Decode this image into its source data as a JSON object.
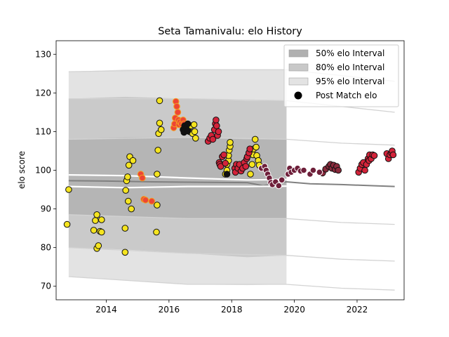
{
  "chart_data": {
    "type": "scatter",
    "title": "Seta Tamanivalu: elo History",
    "xlabel": "",
    "ylabel": "elo score",
    "xlim": [
      2012.4,
      2023.5
    ],
    "ylim": [
      66.5,
      133.5
    ],
    "x_ticks": [
      2014,
      2016,
      2018,
      2020,
      2022
    ],
    "y_ticks": [
      70,
      80,
      90,
      100,
      110,
      120,
      130
    ],
    "legend_position": "top-right",
    "legend": [
      {
        "label": "50% elo Interval",
        "kind": "band",
        "color": "#b0b0b0"
      },
      {
        "label": "80% elo Interval",
        "kind": "band",
        "color": "#c8c8c8"
      },
      {
        "label": "95% elo Interval",
        "kind": "band",
        "color": "#e3e3e3"
      },
      {
        "label": "Post Match elo",
        "kind": "marker",
        "color": "#000000"
      }
    ],
    "interval_band_end_year": 2019.75,
    "bands": {
      "95": {
        "lower": [
          [
            2012.8,
            72.5
          ],
          [
            2014.6,
            71.5
          ],
          [
            2016.6,
            70.5
          ],
          [
            2018.5,
            70.3
          ],
          [
            2019.75,
            70.5
          ]
        ],
        "upper": [
          [
            2012.8,
            125.5
          ],
          [
            2014.6,
            126.0
          ],
          [
            2016.6,
            126.0
          ],
          [
            2018.5,
            126.0
          ],
          [
            2019.75,
            126.0
          ]
        ]
      },
      "80": {
        "lower": [
          [
            2012.8,
            80.0
          ],
          [
            2014.6,
            79.5
          ],
          [
            2016.6,
            78.5
          ],
          [
            2018.5,
            77.5
          ],
          [
            2019.75,
            78.0
          ]
        ],
        "upper": [
          [
            2012.8,
            118.5
          ],
          [
            2014.6,
            119.0
          ],
          [
            2016.6,
            118.5
          ],
          [
            2018.5,
            118.0
          ],
          [
            2019.75,
            118.0
          ]
        ]
      },
      "50": {
        "lower": [
          [
            2012.8,
            88.5
          ],
          [
            2014.6,
            88.0
          ],
          [
            2016.6,
            87.5
          ],
          [
            2018.5,
            87.5
          ],
          [
            2019.75,
            87.5
          ]
        ],
        "upper": [
          [
            2012.8,
            108.0
          ],
          [
            2014.6,
            108.5
          ],
          [
            2016.6,
            108.5
          ],
          [
            2018.5,
            108.0
          ],
          [
            2019.75,
            108.0
          ]
        ]
      }
    },
    "reference_lines": [
      {
        "name": "white-upper",
        "color": "#ffffff",
        "width": 2.2,
        "points": [
          [
            2012.8,
            98.8
          ],
          [
            2014.6,
            98.6
          ],
          [
            2016.6,
            98.0
          ],
          [
            2018.5,
            97.5
          ],
          [
            2019.75,
            97.6
          ]
        ]
      },
      {
        "name": "median",
        "color": "#808080",
        "width": 2.0,
        "points": [
          [
            2012.8,
            97.3
          ],
          [
            2014.0,
            97.2
          ],
          [
            2015.5,
            97.0
          ],
          [
            2017.0,
            96.9
          ],
          [
            2018.5,
            96.8
          ],
          [
            2019.0,
            96.0
          ],
          [
            2019.75,
            97.0
          ],
          [
            2020.5,
            96.5
          ],
          [
            2021.5,
            96.3
          ],
          [
            2022.5,
            96.0
          ],
          [
            2023.2,
            95.8
          ]
        ]
      },
      {
        "name": "white-lower",
        "color": "#ffffff",
        "width": 2.2,
        "points": [
          [
            2012.8,
            95.8
          ],
          [
            2014.6,
            95.5
          ],
          [
            2016.6,
            95.8
          ],
          [
            2018.5,
            95.8
          ],
          [
            2019.75,
            95.9
          ]
        ]
      }
    ],
    "faint_lines": [
      {
        "points": [
          [
            2012.8,
            125.5
          ],
          [
            2016.6,
            126.0
          ],
          [
            2019.75,
            126.0
          ],
          [
            2021.5,
            124.5
          ],
          [
            2023.2,
            123.0
          ]
        ]
      },
      {
        "points": [
          [
            2012.8,
            118.5
          ],
          [
            2016.6,
            118.5
          ],
          [
            2019.75,
            118.0
          ],
          [
            2021.5,
            116.5
          ],
          [
            2023.2,
            115.0
          ]
        ]
      },
      {
        "points": [
          [
            2012.8,
            108.0
          ],
          [
            2016.6,
            108.5
          ],
          [
            2019.75,
            108.0
          ],
          [
            2021.5,
            107.0
          ],
          [
            2023.2,
            106.5
          ]
        ]
      },
      {
        "points": [
          [
            2012.8,
            88.5
          ],
          [
            2016.6,
            87.5
          ],
          [
            2019.75,
            87.5
          ],
          [
            2021.5,
            86.5
          ],
          [
            2023.2,
            86.0
          ]
        ]
      },
      {
        "points": [
          [
            2012.8,
            80.0
          ],
          [
            2016.6,
            78.5
          ],
          [
            2019.75,
            78.0
          ],
          [
            2021.5,
            77.0
          ],
          [
            2023.2,
            76.5
          ]
        ]
      },
      {
        "points": [
          [
            2012.8,
            72.5
          ],
          [
            2016.6,
            70.5
          ],
          [
            2019.75,
            70.5
          ],
          [
            2021.5,
            69.5
          ],
          [
            2023.2,
            69.0
          ]
        ]
      }
    ],
    "series": [
      {
        "fill": "#f5e41f",
        "edge": "#111111",
        "points": [
          [
            2012.75,
            86.0
          ],
          [
            2012.8,
            95.0
          ],
          [
            2013.6,
            84.5
          ],
          [
            2013.65,
            87.0
          ],
          [
            2013.7,
            88.5
          ],
          [
            2013.7,
            79.8
          ],
          [
            2013.75,
            80.5
          ],
          [
            2013.8,
            84.2
          ],
          [
            2013.85,
            87.2
          ],
          [
            2013.85,
            84.0
          ],
          [
            2014.6,
            78.8
          ],
          [
            2014.6,
            85.0
          ],
          [
            2014.62,
            94.8
          ],
          [
            2014.65,
            97.3
          ],
          [
            2014.68,
            98.3
          ],
          [
            2014.7,
            92.0
          ],
          [
            2014.72,
            101.3
          ],
          [
            2014.75,
            103.5
          ],
          [
            2014.8,
            90.0
          ],
          [
            2014.85,
            102.5
          ],
          [
            2015.6,
            84.0
          ],
          [
            2015.62,
            91.0
          ],
          [
            2015.62,
            99.0
          ],
          [
            2015.65,
            105.2
          ],
          [
            2015.67,
            109.5
          ],
          [
            2015.7,
            112.2
          ],
          [
            2015.7,
            118.0
          ],
          [
            2015.75,
            110.5
          ],
          [
            2016.55,
            110.5
          ],
          [
            2016.6,
            111.8
          ],
          [
            2016.65,
            110.0
          ],
          [
            2016.7,
            111.5
          ],
          [
            2016.75,
            109.5
          ],
          [
            2016.8,
            111.8
          ],
          [
            2016.82,
            110.0
          ],
          [
            2016.85,
            108.3
          ],
          [
            2017.8,
            99.0
          ],
          [
            2017.85,
            100.0
          ],
          [
            2017.85,
            101.5
          ],
          [
            2017.9,
            102.5
          ],
          [
            2017.9,
            103.8
          ],
          [
            2017.92,
            105.2
          ],
          [
            2017.95,
            106.2
          ],
          [
            2017.95,
            107.2
          ],
          [
            2018.6,
            99.0
          ],
          [
            2018.65,
            101.5
          ],
          [
            2018.68,
            104.0
          ],
          [
            2018.7,
            105.5
          ],
          [
            2018.75,
            108.0
          ],
          [
            2018.78,
            106.0
          ],
          [
            2018.8,
            103.8
          ],
          [
            2018.85,
            102.5
          ],
          [
            2018.88,
            101.3
          ]
        ]
      },
      {
        "fill": "#ed4535",
        "edge": "#f3a020",
        "points": [
          [
            2015.1,
            99.0
          ],
          [
            2015.15,
            98.0
          ],
          [
            2015.2,
            92.5
          ],
          [
            2015.25,
            92.3
          ],
          [
            2015.45,
            92.0
          ],
          [
            2016.15,
            111.0
          ],
          [
            2016.18,
            112.0
          ],
          [
            2016.2,
            113.5
          ],
          [
            2016.22,
            117.8
          ],
          [
            2016.25,
            116.5
          ],
          [
            2016.28,
            115.0
          ],
          [
            2016.3,
            113.0
          ],
          [
            2016.32,
            111.8
          ],
          [
            2016.35,
            112.5
          ],
          [
            2016.4,
            112.0
          ],
          [
            2016.45,
            113.0
          ],
          [
            2016.48,
            112.0
          ]
        ]
      },
      {
        "fill": "#111111",
        "edge": "#111111",
        "points": [
          [
            2016.45,
            110.5
          ],
          [
            2016.5,
            111.5
          ],
          [
            2016.55,
            110.8
          ],
          [
            2016.6,
            112.0
          ],
          [
            2016.48,
            109.8
          ],
          [
            2016.6,
            110.2
          ],
          [
            2017.85,
            99.0
          ]
        ]
      },
      {
        "fill": "#d4233a",
        "edge": "#111111",
        "points": [
          [
            2017.25,
            107.5
          ],
          [
            2017.3,
            108.3
          ],
          [
            2017.35,
            109.0
          ],
          [
            2017.4,
            108.0
          ],
          [
            2017.45,
            110.5
          ],
          [
            2017.48,
            112.0
          ],
          [
            2017.5,
            113.0
          ],
          [
            2017.52,
            111.5
          ],
          [
            2017.55,
            109.0
          ],
          [
            2017.58,
            110.0
          ],
          [
            2017.6,
            102.0
          ],
          [
            2017.62,
            101.5
          ],
          [
            2017.65,
            101.0
          ],
          [
            2017.7,
            103.5
          ],
          [
            2017.75,
            104.0
          ],
          [
            2017.8,
            101.8
          ],
          [
            2018.1,
            100.5
          ],
          [
            2018.12,
            99.5
          ],
          [
            2018.15,
            101.5
          ],
          [
            2018.2,
            100.5
          ],
          [
            2018.25,
            101.5
          ],
          [
            2018.3,
            99.8
          ],
          [
            2018.35,
            100.5
          ],
          [
            2018.4,
            102.0
          ],
          [
            2018.45,
            101.0
          ],
          [
            2018.48,
            103.0
          ],
          [
            2018.5,
            103.5
          ],
          [
            2018.55,
            104.5
          ],
          [
            2018.58,
            105.5
          ],
          [
            2022.05,
            99.5
          ],
          [
            2022.1,
            100.5
          ],
          [
            2022.15,
            101.5
          ],
          [
            2022.2,
            102.0
          ],
          [
            2022.25,
            100.0
          ],
          [
            2022.3,
            101.5
          ],
          [
            2022.35,
            103.0
          ],
          [
            2022.38,
            102.5
          ],
          [
            2022.4,
            104.0
          ],
          [
            2022.45,
            103.0
          ],
          [
            2022.5,
            104.0
          ],
          [
            2022.55,
            103.8
          ],
          [
            2022.95,
            104.3
          ],
          [
            2023.0,
            103.0
          ],
          [
            2023.05,
            104.0
          ],
          [
            2023.1,
            104.5
          ],
          [
            2023.12,
            105.0
          ],
          [
            2023.15,
            104.0
          ]
        ]
      },
      {
        "fill": "#8a2a3c",
        "edge": "#111111",
        "points": [
          [
            2020.9,
            99.3
          ],
          [
            2021.0,
            100.3
          ],
          [
            2021.1,
            101.0
          ],
          [
            2021.15,
            101.5
          ],
          [
            2021.2,
            100.5
          ],
          [
            2021.25,
            101.3
          ],
          [
            2021.3,
            100.2
          ],
          [
            2021.35,
            101.0
          ],
          [
            2021.4,
            100.0
          ]
        ]
      },
      {
        "fill": "#6e1f3a",
        "edge": "#ffffff",
        "points": [
          [
            2018.95,
            100.5
          ],
          [
            2019.05,
            101.0
          ],
          [
            2019.1,
            100.0
          ],
          [
            2019.15,
            99.0
          ],
          [
            2019.2,
            98.0
          ],
          [
            2019.25,
            96.8
          ],
          [
            2019.3,
            96.3
          ],
          [
            2019.4,
            97.0
          ],
          [
            2019.5,
            96.0
          ],
          [
            2019.6,
            97.5
          ],
          [
            2019.8,
            99.0
          ],
          [
            2019.85,
            100.5
          ],
          [
            2019.9,
            99.5
          ],
          [
            2020.0,
            100.0
          ],
          [
            2020.1,
            100.5
          ],
          [
            2020.2,
            99.8
          ],
          [
            2020.3,
            100.0
          ],
          [
            2020.5,
            99.0
          ],
          [
            2020.6,
            100.0
          ],
          [
            2020.8,
            99.5
          ]
        ]
      }
    ]
  }
}
